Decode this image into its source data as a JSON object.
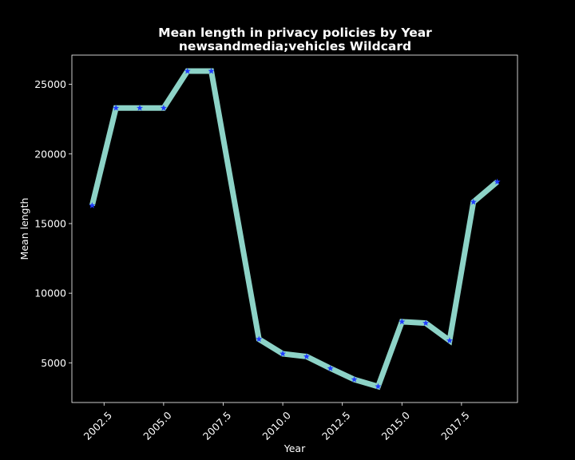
{
  "chart_data": {
    "type": "line",
    "title_line1": "Mean length in privacy policies by Year",
    "title_line2": "newsandmedia;vehicles Wildcard",
    "xlabel": "Year",
    "ylabel": "Mean length",
    "xlim": [
      2001.15,
      2019.85
    ],
    "ylim": [
      2150,
      27100
    ],
    "xticks": [
      2002.5,
      2005.0,
      2007.5,
      2010.0,
      2012.5,
      2015.0,
      2017.5
    ],
    "xtick_labels": [
      "2002.5",
      "2005.0",
      "2007.5",
      "2010.0",
      "2012.5",
      "2015.0",
      "2017.5"
    ],
    "yticks": [
      5000,
      10000,
      15000,
      20000,
      25000
    ],
    "ytick_labels": [
      "5000",
      "10000",
      "15000",
      "20000",
      "25000"
    ],
    "grid": false,
    "series": [
      {
        "x": [
          2002,
          2003,
          2004,
          2005,
          2006,
          2007,
          2009,
          2010,
          2011,
          2012,
          2013,
          2014,
          2015,
          2016,
          2017,
          2018,
          2019
        ],
        "values": [
          16300,
          23300,
          23300,
          23300,
          25950,
          25950,
          6700,
          5650,
          5450,
          4600,
          3800,
          3300,
          7950,
          7850,
          6600,
          16550,
          18000
        ],
        "line_color": "#8dd3c7",
        "marker": "star",
        "marker_color": "#1f3cff"
      }
    ]
  }
}
